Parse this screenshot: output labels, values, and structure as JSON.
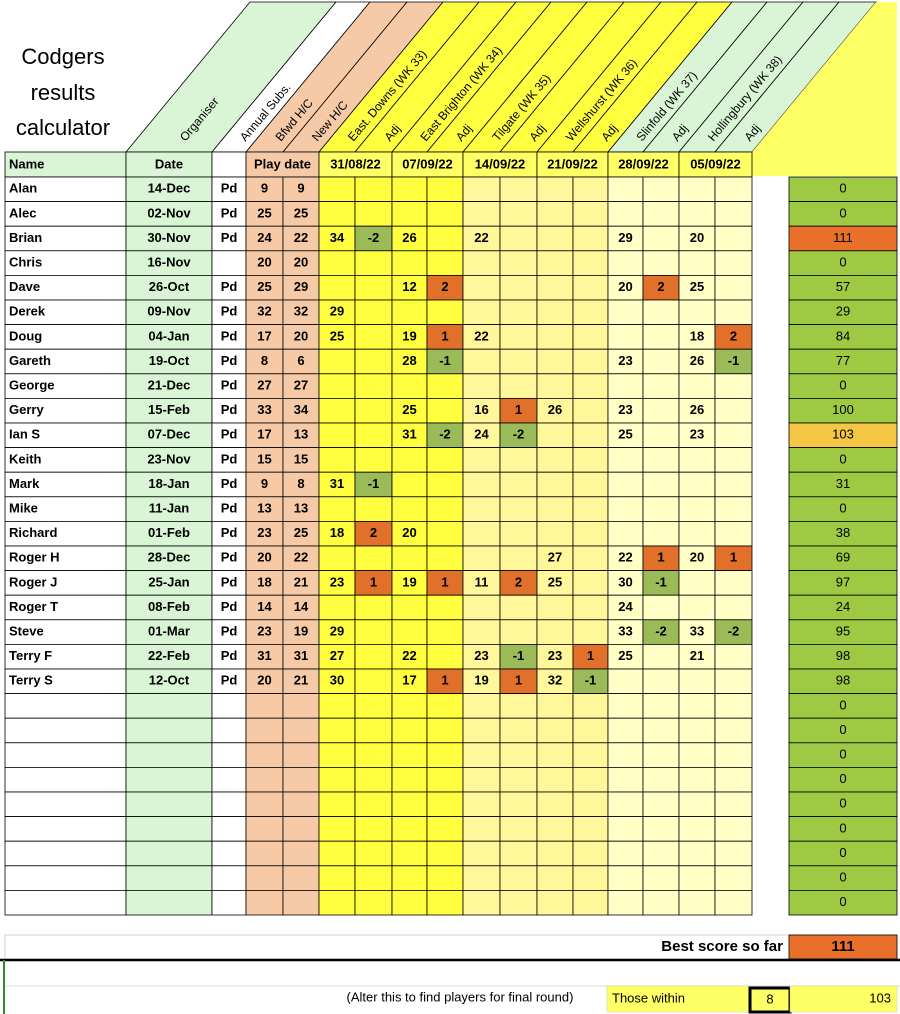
{
  "title": [
    "Codgers",
    "results",
    "calculator"
  ],
  "diagonal_headers": [
    "Organiser",
    "Annual Subs.",
    "Bfwd H/C",
    "New H/C",
    "East. Downs (WK 33)",
    "Adj",
    "East Brighton (WK 34)",
    "Adj",
    "Tilgate (WK 35)",
    "Adj",
    "Wellshurst (WK 36)",
    "Adj",
    "Slinfold (WK 37)",
    "Adj",
    "Hollingbury (WK 38)",
    "Adj"
  ],
  "header_row": {
    "name": "Name",
    "date": "Date",
    "play_date": "Play date",
    "round_dates": [
      "31/08/22",
      "07/09/22",
      "14/09/22",
      "21/09/22",
      "28/09/22",
      "05/09/22"
    ]
  },
  "players": [
    {
      "name": "Alan",
      "date": "14-Dec",
      "subs": "Pd",
      "bfwd": "9",
      "new": "9",
      "scores": [
        "",
        "",
        "",
        "",
        "",
        "",
        "",
        "",
        "",
        "",
        "",
        ""
      ],
      "total": "0"
    },
    {
      "name": "Alec",
      "date": "02-Nov",
      "subs": "Pd",
      "bfwd": "25",
      "new": "25",
      "scores": [
        "",
        "",
        "",
        "",
        "",
        "",
        "",
        "",
        "",
        "",
        "",
        ""
      ],
      "total": "0"
    },
    {
      "name": "Brian",
      "date": "30-Nov",
      "subs": "Pd",
      "bfwd": "24",
      "new": "22",
      "scores": [
        "34",
        "-2",
        "26",
        "",
        "22",
        "",
        "",
        "",
        "29",
        "",
        "20",
        ""
      ],
      "total": "111"
    },
    {
      "name": "Chris",
      "date": "16-Nov",
      "subs": "",
      "bfwd": "20",
      "new": "20",
      "scores": [
        "",
        "",
        "",
        "",
        "",
        "",
        "",
        "",
        "",
        "",
        "",
        ""
      ],
      "total": "0"
    },
    {
      "name": "Dave",
      "date": "26-Oct",
      "subs": "Pd",
      "bfwd": "25",
      "new": "29",
      "scores": [
        "",
        "",
        "12",
        "2",
        "",
        "",
        "",
        "",
        "20",
        "2",
        "25",
        ""
      ],
      "total": "57"
    },
    {
      "name": "Derek",
      "date": "09-Nov",
      "subs": "Pd",
      "bfwd": "32",
      "new": "32",
      "scores": [
        "29",
        "",
        "",
        "",
        "",
        "",
        "",
        "",
        "",
        "",
        "",
        ""
      ],
      "total": "29"
    },
    {
      "name": "Doug",
      "date": "04-Jan",
      "subs": "Pd",
      "bfwd": "17",
      "new": "20",
      "scores": [
        "25",
        "",
        "19",
        "1",
        "22",
        "",
        "",
        "",
        "",
        "",
        "18",
        "2"
      ],
      "total": "84"
    },
    {
      "name": "Gareth",
      "date": "19-Oct",
      "subs": "Pd",
      "bfwd": "8",
      "new": "6",
      "scores": [
        "",
        "",
        "28",
        "-1",
        "",
        "",
        "",
        "",
        "23",
        "",
        "26",
        "-1"
      ],
      "total": "77"
    },
    {
      "name": "George",
      "date": "21-Dec",
      "subs": "Pd",
      "bfwd": "27",
      "new": "27",
      "scores": [
        "",
        "",
        "",
        "",
        "",
        "",
        "",
        "",
        "",
        "",
        "",
        ""
      ],
      "total": "0"
    },
    {
      "name": "Gerry",
      "date": "15-Feb",
      "subs": "Pd",
      "bfwd": "33",
      "new": "34",
      "scores": [
        "",
        "",
        "25",
        "",
        "16",
        "1",
        "26",
        "",
        "23",
        "",
        "26",
        ""
      ],
      "total": "100"
    },
    {
      "name": "Ian S",
      "date": "07-Dec",
      "subs": "Pd",
      "bfwd": "17",
      "new": "13",
      "scores": [
        "",
        "",
        "31",
        "-2",
        "24",
        "-2",
        "",
        "",
        "25",
        "",
        "23",
        ""
      ],
      "total": "103"
    },
    {
      "name": "Keith",
      "date": "23-Nov",
      "subs": "Pd",
      "bfwd": "15",
      "new": "15",
      "scores": [
        "",
        "",
        "",
        "",
        "",
        "",
        "",
        "",
        "",
        "",
        "",
        ""
      ],
      "total": "0"
    },
    {
      "name": "Mark",
      "date": "18-Jan",
      "subs": "Pd",
      "bfwd": "9",
      "new": "8",
      "scores": [
        "31",
        "-1",
        "",
        "",
        "",
        "",
        "",
        "",
        "",
        "",
        "",
        ""
      ],
      "total": "31"
    },
    {
      "name": "Mike",
      "date": "11-Jan",
      "subs": "Pd",
      "bfwd": "13",
      "new": "13",
      "scores": [
        "",
        "",
        "",
        "",
        "",
        "",
        "",
        "",
        "",
        "",
        "",
        ""
      ],
      "total": "0"
    },
    {
      "name": "Richard",
      "date": "01-Feb",
      "subs": "Pd",
      "bfwd": "23",
      "new": "25",
      "scores": [
        "18",
        "2",
        "20",
        "",
        "",
        "",
        "",
        "",
        "",
        "",
        "",
        ""
      ],
      "total": "38"
    },
    {
      "name": "Roger H",
      "date": "28-Dec",
      "subs": "Pd",
      "bfwd": "20",
      "new": "22",
      "scores": [
        "",
        "",
        "",
        "",
        "",
        "",
        "27",
        "",
        "22",
        "1",
        "20",
        "1"
      ],
      "total": "69"
    },
    {
      "name": "Roger J",
      "date": "25-Jan",
      "subs": "Pd",
      "bfwd": "18",
      "new": "21",
      "scores": [
        "23",
        "1",
        "19",
        "1",
        "11",
        "2",
        "25",
        "",
        "30",
        "-1",
        "",
        ""
      ],
      "total": "97"
    },
    {
      "name": "Roger T",
      "date": "08-Feb",
      "subs": "Pd",
      "bfwd": "14",
      "new": "14",
      "scores": [
        "",
        "",
        "",
        "",
        "",
        "",
        "",
        "",
        "24",
        "",
        "",
        ""
      ],
      "total": "24"
    },
    {
      "name": "Steve",
      "date": "01-Mar",
      "subs": "Pd",
      "bfwd": "23",
      "new": "19",
      "scores": [
        "29",
        "",
        "",
        "",
        "",
        "",
        "",
        "",
        "33",
        "-2",
        "33",
        "-2"
      ],
      "total": "95"
    },
    {
      "name": "Terry F",
      "date": "22-Feb",
      "subs": "Pd",
      "bfwd": "31",
      "new": "31",
      "scores": [
        "27",
        "",
        "22",
        "",
        "23",
        "-1",
        "23",
        "1",
        "25",
        "",
        "21",
        ""
      ],
      "total": "98"
    },
    {
      "name": "Terry S",
      "date": "12-Oct",
      "subs": "Pd",
      "bfwd": "20",
      "new": "21",
      "scores": [
        "30",
        "",
        "17",
        "1",
        "19",
        "1",
        "32",
        "-1",
        "",
        "",
        "",
        ""
      ],
      "total": "98"
    }
  ],
  "blank_row_totals": [
    "0",
    "0",
    "0",
    "0",
    "0",
    "0",
    "0",
    "0",
    "0"
  ],
  "best_score_label": "Best score so far",
  "best_score": "111",
  "note": "(Alter this to find players for final round)",
  "those_within_label": "Those within",
  "those_within_value": "8",
  "threshold": "103",
  "colors": {
    "name_green": "#d9f5d6",
    "handicap_peach": "#f6caa6",
    "header_yellow": "#ffff66",
    "score_bright": "#ffff40",
    "score_medium": "#fff79a",
    "score_pale": "#ffffc6",
    "adj_positive": "#e0702a",
    "adj_negative": "#9bbb59",
    "total_green": "#9ec942",
    "total_best": "#e8702a",
    "total_second": "#f5c745"
  }
}
